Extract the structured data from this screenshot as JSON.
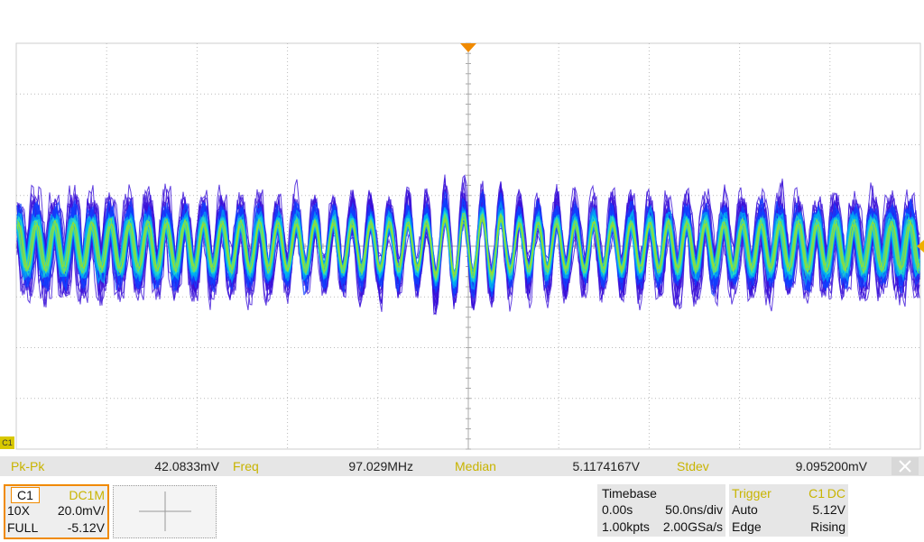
{
  "channel_marker": "C1",
  "measurements": [
    {
      "label": "Pk-Pk",
      "value": "42.0833mV"
    },
    {
      "label": "Freq",
      "value": "97.029MHz"
    },
    {
      "label": "Median",
      "value": "5.1174167V"
    },
    {
      "label": "Stdev",
      "value": "9.095200mV"
    }
  ],
  "channel": {
    "name": "C1",
    "coupling": "DC1M",
    "probe": "10X",
    "scale": "20.0mV/",
    "bandwidth": "FULL",
    "offset": "-5.12V"
  },
  "timebase": {
    "title": "Timebase",
    "delay": "0.00s",
    "scale": "50.0ns/div",
    "points": "1.00kpts",
    "sample_rate": "2.00GSa/s"
  },
  "trigger": {
    "title": "Trigger",
    "source": "C1",
    "coupling": "DC",
    "mode": "Auto",
    "level": "5.12V",
    "type": "Edge",
    "slope": "Rising"
  }
}
